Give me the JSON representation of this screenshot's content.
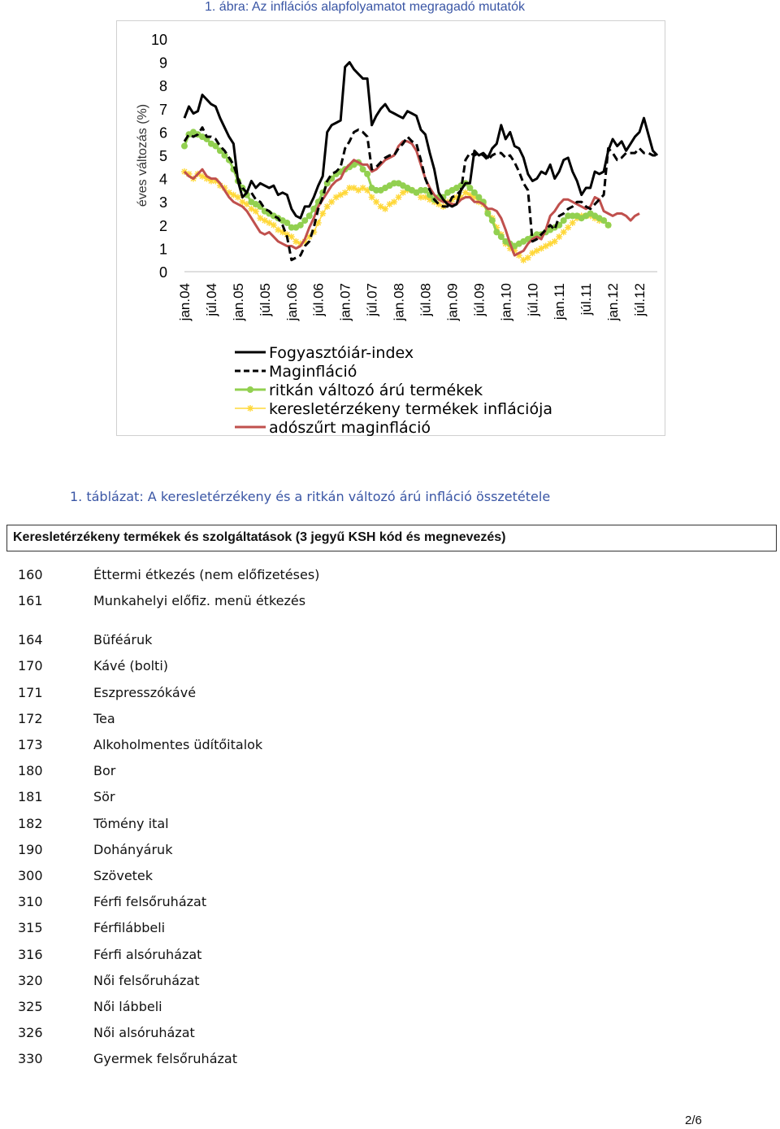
{
  "figure": {
    "title": "1. ábra: Az inflációs alapfolyamatot megragadó mutatók"
  },
  "chart_data": {
    "type": "line",
    "title": "1. ábra: Az inflációs alapfolyamatot megragadó mutatók",
    "ylabel": "éves változás (%)",
    "xlabel": "",
    "ylim": [
      0,
      10
    ],
    "yticks": [
      "0",
      "1",
      "2",
      "3",
      "4",
      "5",
      "6",
      "7",
      "8",
      "9",
      "10"
    ],
    "xticks": [
      "jan.04",
      "júl.04",
      "jan.05",
      "júl.05",
      "jan.06",
      "júl.06",
      "jan.07",
      "júl.07",
      "jan.08",
      "júl.08",
      "jan.09",
      "júl.09",
      "jan.10",
      "júl.10",
      "jan.11",
      "júl.11",
      "jan.12",
      "júl.12"
    ],
    "x_start": "2004-01",
    "grid": false,
    "legend_position": "bottom",
    "series": [
      {
        "name": "Fogyasztóiár-index",
        "color": "#000000",
        "style": "solid",
        "values": [
          6.6,
          7.1,
          6.8,
          6.9,
          7.6,
          7.4,
          7.2,
          7.1,
          6.6,
          6.2,
          5.8,
          5.5,
          3.9,
          3.2,
          3.4,
          3.9,
          3.6,
          3.8,
          3.7,
          3.6,
          3.7,
          3.3,
          3.4,
          3.3,
          2.7,
          2.4,
          2.3,
          2.8,
          2.8,
          3.2,
          3.7,
          4.1,
          6.0,
          6.3,
          6.4,
          6.5,
          8.8,
          9.0,
          8.7,
          8.5,
          8.3,
          8.3,
          6.3,
          6.7,
          7.0,
          7.2,
          6.9,
          6.8,
          6.7,
          6.6,
          6.9,
          6.8,
          6.7,
          6.1,
          5.9,
          5.1,
          4.4,
          3.4,
          3.1,
          2.9,
          2.8,
          2.9,
          3.5,
          3.8,
          3.8,
          5.2,
          5.0,
          5.1,
          4.9,
          5.3,
          5.5,
          6.3,
          5.7,
          6.0,
          5.4,
          5.3,
          4.9,
          4.2,
          3.9,
          4.0,
          4.3,
          4.2,
          4.6,
          4.0,
          4.3,
          4.8,
          4.9,
          4.3,
          3.9,
          3.3,
          3.6,
          3.6,
          4.3,
          4.2,
          4.3,
          5.2,
          5.7,
          5.4,
          5.6,
          5.2,
          5.5,
          5.8,
          6.0,
          6.6,
          5.9,
          5.2,
          5.0
        ]
      },
      {
        "name": "Maginfláció",
        "color": "#000000",
        "style": "dashed",
        "values": [
          5.6,
          5.9,
          5.8,
          5.9,
          6.2,
          5.8,
          5.8,
          5.7,
          5.4,
          5.2,
          4.9,
          4.6,
          4.0,
          3.6,
          3.4,
          3.4,
          3.1,
          3.0,
          2.7,
          2.6,
          2.4,
          2.3,
          2.0,
          1.5,
          0.5,
          0.6,
          0.7,
          1.1,
          1.3,
          1.9,
          2.7,
          3.2,
          3.9,
          4.2,
          4.3,
          4.5,
          5.3,
          5.6,
          6.0,
          6.1,
          6.0,
          5.8,
          4.4,
          4.5,
          4.7,
          4.9,
          5.0,
          5.0,
          5.3,
          5.5,
          5.8,
          5.6,
          5.5,
          4.8,
          4.0,
          3.5,
          3.1,
          2.9,
          2.8,
          2.8,
          3.2,
          3.3,
          3.5,
          4.8,
          5.1,
          5.0,
          5.1,
          5.0,
          4.8,
          5.0,
          5.1,
          5.1,
          4.9,
          5.0,
          4.7,
          4.3,
          3.8,
          3.5,
          1.3,
          1.4,
          1.6,
          1.8,
          2.0,
          1.8,
          2.4,
          2.5,
          2.7,
          2.8,
          3.0,
          3.0,
          2.8,
          2.7,
          2.9,
          3.1,
          3.3,
          5.3,
          5.1,
          4.8,
          4.9,
          5.1,
          5.1,
          5.1,
          5.3,
          5.1,
          5.1,
          5.0,
          5.0
        ]
      },
      {
        "name": "ritkán változó árú termékek",
        "color": "#92d050",
        "style": "marker",
        "values": [
          5.4,
          5.9,
          6.0,
          5.9,
          5.8,
          5.7,
          5.5,
          5.4,
          5.2,
          5.0,
          4.8,
          4.4,
          3.9,
          3.6,
          3.3,
          3.0,
          2.9,
          2.8,
          2.6,
          2.5,
          2.4,
          2.3,
          2.2,
          2.1,
          1.9,
          1.9,
          2.0,
          2.2,
          2.4,
          2.7,
          3.0,
          3.4,
          3.8,
          4.0,
          4.2,
          4.3,
          4.4,
          4.5,
          4.6,
          4.7,
          4.4,
          4.2,
          3.6,
          3.5,
          3.5,
          3.6,
          3.7,
          3.8,
          3.8,
          3.7,
          3.6,
          3.5,
          3.4,
          3.5,
          3.5,
          3.3,
          3.1,
          3.2,
          3.2,
          3.4,
          3.5,
          3.6,
          3.7,
          3.8,
          3.6,
          3.4,
          3.2,
          3.0,
          2.5,
          2.2,
          1.7,
          1.5,
          1.3,
          1.2,
          1.1,
          1.2,
          1.3,
          1.4,
          1.5,
          1.6,
          1.6,
          1.7,
          1.8,
          1.9,
          2.0,
          2.2,
          2.4,
          2.4,
          2.4,
          2.3,
          2.4,
          2.5,
          2.4,
          2.3,
          2.2,
          2.0
        ]
      },
      {
        "name": "keresletérzékeny termékek inflációja",
        "color": "#ffd83a",
        "style": "star",
        "values": [
          4.3,
          4.2,
          4.0,
          4.2,
          4.1,
          4.0,
          3.9,
          3.9,
          3.7,
          3.6,
          3.4,
          3.3,
          3.2,
          3.0,
          2.9,
          2.7,
          2.6,
          2.3,
          2.2,
          2.1,
          2.0,
          1.8,
          1.7,
          1.6,
          1.5,
          1.3,
          1.2,
          1.3,
          1.5,
          1.7,
          2.1,
          2.5,
          2.8,
          3.0,
          3.2,
          3.3,
          3.4,
          3.6,
          3.6,
          3.5,
          3.6,
          3.5,
          3.2,
          3.0,
          2.8,
          2.7,
          2.9,
          3.0,
          3.2,
          3.4,
          3.5,
          3.5,
          3.4,
          3.2,
          3.2,
          3.1,
          3.0,
          2.9,
          2.8,
          3.0,
          3.1,
          3.2,
          3.2,
          3.4,
          3.3,
          3.2,
          3.0,
          2.9,
          2.6,
          2.3,
          1.9,
          1.6,
          1.2,
          1.0,
          0.9,
          0.7,
          0.5,
          0.6,
          0.8,
          0.9,
          1.0,
          1.1,
          1.2,
          1.3,
          1.5,
          1.7,
          1.9,
          2.1,
          2.3,
          2.4,
          2.4,
          2.4,
          2.3,
          2.2,
          2.2,
          2.0
        ]
      },
      {
        "name": "adószűrt maginfláció",
        "color": "#c0504d",
        "style": "solid",
        "values": [
          4.3,
          4.1,
          4.0,
          4.2,
          4.4,
          4.1,
          4.0,
          4.0,
          3.8,
          3.5,
          3.2,
          3.0,
          2.9,
          2.8,
          2.6,
          2.3,
          2.0,
          1.7,
          1.6,
          1.7,
          1.5,
          1.3,
          1.2,
          1.1,
          1.1,
          1.0,
          1.1,
          1.4,
          1.9,
          2.3,
          2.8,
          3.1,
          3.4,
          3.7,
          3.9,
          4.0,
          4.4,
          4.6,
          4.8,
          4.7,
          4.6,
          4.6,
          4.3,
          4.4,
          4.6,
          4.8,
          4.9,
          5.0,
          5.4,
          5.6,
          5.6,
          5.5,
          5.2,
          4.6,
          4.0,
          3.6,
          3.3,
          3.1,
          3.0,
          3.0,
          2.9,
          2.9,
          3.1,
          3.2,
          3.2,
          3.0,
          3.0,
          2.9,
          2.7,
          2.7,
          2.6,
          2.3,
          1.8,
          1.2,
          0.7,
          0.8,
          0.9,
          1.2,
          1.4,
          1.5,
          1.4,
          1.8,
          2.4,
          2.6,
          2.9,
          3.1,
          3.1,
          3.0,
          2.9,
          2.8,
          2.7,
          2.8,
          3.2,
          3.1,
          2.6,
          2.5,
          2.4,
          2.5,
          2.5,
          2.4,
          2.2,
          2.4,
          2.5
        ]
      }
    ]
  },
  "table": {
    "title": "1. táblázat: A keresletérzékeny és a ritkán változó árú infláció összetétele",
    "header": "Keresletérzékeny termékek és szolgáltatások (3 jegyű KSH kód és megnevezés)",
    "rows": [
      {
        "code": "160",
        "name": "Éttermi étkezés (nem előfizetéses)"
      },
      {
        "code": "161",
        "name": "Munkahelyi előfiz. menü étkezés"
      },
      {
        "code": "164",
        "name": "Büféáruk"
      },
      {
        "code": "170",
        "name": "Kávé (bolti)"
      },
      {
        "code": "171",
        "name": "Eszpresszókávé"
      },
      {
        "code": "172",
        "name": "Tea"
      },
      {
        "code": "173",
        "name": "Alkoholmentes üdítőitalok"
      },
      {
        "code": "180",
        "name": "Bor"
      },
      {
        "code": "181",
        "name": "Sör"
      },
      {
        "code": "182",
        "name": "Tömény ital"
      },
      {
        "code": "190",
        "name": "Dohányáruk"
      },
      {
        "code": "300",
        "name": "Szövetek"
      },
      {
        "code": "310",
        "name": "Férfi felsőruházat"
      },
      {
        "code": "315",
        "name": "Férfilábbeli"
      },
      {
        "code": "316",
        "name": "Férfi alsóruházat"
      },
      {
        "code": "320",
        "name": "Női felsőruházat"
      },
      {
        "code": "325",
        "name": "Női lábbeli"
      },
      {
        "code": "326",
        "name": "Női alsóruházat"
      },
      {
        "code": "330",
        "name": "Gyermek felsőruházat"
      }
    ]
  },
  "footer": {
    "page_number": "2/6"
  }
}
